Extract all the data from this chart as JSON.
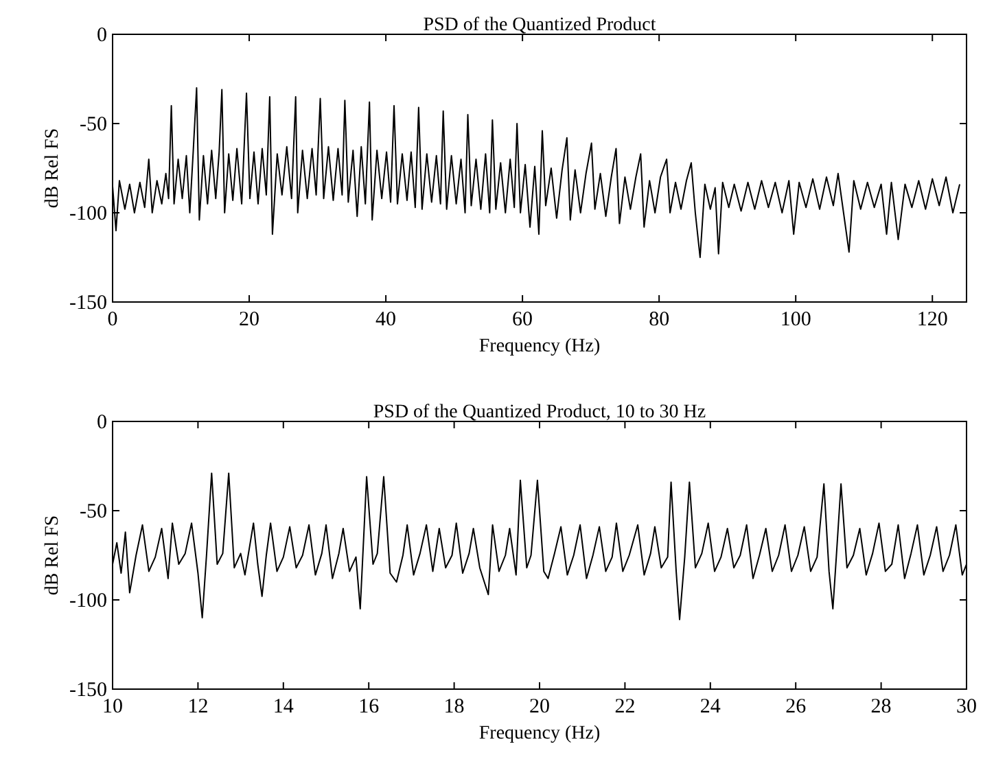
{
  "chart_data": [
    {
      "type": "line",
      "title": "PSD of the Quantized Product",
      "xlabel": "Frequency (Hz)",
      "ylabel": "dB Rel FS",
      "xlim": [
        0,
        125
      ],
      "xticks": [
        0,
        20,
        40,
        60,
        80,
        100,
        120
      ],
      "ylim": [
        -150,
        0
      ],
      "yticks": [
        0,
        -50,
        -100,
        -150
      ],
      "grid": false,
      "line_style": "solid",
      "marker": "none",
      "series": [
        {
          "color": "#000000",
          "x": [
            0,
            0.5,
            1,
            1.8,
            2.5,
            3.2,
            4,
            4.7,
            5.3,
            5.8,
            6.5,
            7.2,
            7.8,
            8.2,
            8.6,
            9,
            9.6,
            10.2,
            10.8,
            11.3,
            11.8,
            12.3,
            12.7,
            13.3,
            13.9,
            14.5,
            15.1,
            15.6,
            16,
            16.4,
            17,
            17.6,
            18.2,
            18.9,
            19.6,
            20.1,
            20.7,
            21.3,
            21.9,
            22.5,
            23,
            23.4,
            24.1,
            24.8,
            25.5,
            26.2,
            26.8,
            27.1,
            27.8,
            28.5,
            29.2,
            29.8,
            30.4,
            30.9,
            31.6,
            32.3,
            33,
            33.6,
            34,
            34.5,
            35.2,
            35.8,
            36.4,
            37,
            37.6,
            38,
            38.7,
            39.4,
            40.1,
            40.7,
            41.2,
            41.7,
            42.4,
            43.1,
            43.7,
            44.3,
            44.8,
            45.3,
            46,
            46.7,
            47.4,
            48,
            48.4,
            48.9,
            49.6,
            50.3,
            51,
            51.6,
            52,
            52.5,
            53.2,
            53.9,
            54.6,
            55.2,
            55.6,
            56.1,
            56.8,
            57.5,
            58.2,
            58.8,
            59.2,
            59.7,
            60.4,
            61.1,
            61.8,
            62.4,
            62.9,
            63.4,
            64.2,
            65,
            65.8,
            66.5,
            67,
            67.7,
            68.5,
            69.3,
            70.1,
            70.6,
            71.4,
            72.2,
            73,
            73.7,
            74.2,
            75,
            75.8,
            76.6,
            77.3,
            77.8,
            78.6,
            79.4,
            80.2,
            81.1,
            81.6,
            82.4,
            83.2,
            84,
            84.7,
            85.3,
            86,
            86.7,
            87.5,
            88.2,
            88.7,
            89.3,
            90.2,
            91,
            92,
            93,
            94,
            95,
            96,
            97,
            98,
            99,
            99.7,
            100.5,
            101.5,
            102.5,
            103.5,
            104.5,
            105.5,
            106.2,
            107,
            107.8,
            108.5,
            109.5,
            110.5,
            111.5,
            112.5,
            113.3,
            114,
            115,
            116,
            117,
            118,
            119,
            120,
            121,
            122,
            123,
            124
          ],
          "values": [
            -85,
            -110,
            -82,
            -98,
            -84,
            -100,
            -83,
            -97,
            -70,
            -100,
            -82,
            -95,
            -78,
            -92,
            -40,
            -95,
            -70,
            -92,
            -68,
            -100,
            -66,
            -30,
            -104,
            -68,
            -95,
            -65,
            -92,
            -66,
            -31,
            -100,
            -67,
            -93,
            -64,
            -95,
            -33,
            -92,
            -66,
            -95,
            -64,
            -90,
            -35,
            -112,
            -67,
            -90,
            -63,
            -92,
            -35,
            -100,
            -65,
            -92,
            -64,
            -90,
            -36,
            -92,
            -63,
            -93,
            -64,
            -90,
            -37,
            -94,
            -65,
            -102,
            -63,
            -95,
            -38,
            -104,
            -65,
            -92,
            -66,
            -94,
            -40,
            -95,
            -67,
            -93,
            -66,
            -97,
            -41,
            -98,
            -67,
            -94,
            -68,
            -95,
            -43,
            -98,
            -68,
            -95,
            -70,
            -100,
            -45,
            -96,
            -70,
            -98,
            -67,
            -100,
            -48,
            -98,
            -72,
            -100,
            -70,
            -97,
            -50,
            -100,
            -73,
            -108,
            -74,
            -112,
            -54,
            -96,
            -75,
            -103,
            -76,
            -58,
            -104,
            -76,
            -100,
            -78,
            -61,
            -98,
            -78,
            -102,
            -80,
            -64,
            -106,
            -80,
            -98,
            -80,
            -67,
            -108,
            -82,
            -100,
            -80,
            -70,
            -100,
            -83,
            -98,
            -82,
            -72,
            -100,
            -125,
            -84,
            -98,
            -86,
            -123,
            -83,
            -97,
            -84,
            -99,
            -83,
            -98,
            -82,
            -97,
            -83,
            -100,
            -82,
            -112,
            -83,
            -97,
            -81,
            -98,
            -80,
            -96,
            -78,
            -100,
            -122,
            -82,
            -98,
            -83,
            -97,
            -84,
            -112,
            -83,
            -115,
            -84,
            -97,
            -82,
            -98,
            -81,
            -96,
            -80,
            -100,
            -84
          ]
        }
      ]
    },
    {
      "type": "line",
      "title": "PSD of the Quantized Product, 10 to 30 Hz",
      "xlabel": "Frequency (Hz)",
      "ylabel": "dB Rel FS",
      "xlim": [
        10,
        30
      ],
      "xticks": [
        10,
        12,
        14,
        16,
        18,
        20,
        22,
        24,
        26,
        28,
        30
      ],
      "ylim": [
        -150,
        0
      ],
      "yticks": [
        0,
        -50,
        -100,
        -150
      ],
      "grid": false,
      "line_style": "solid",
      "marker": "none",
      "series": [
        {
          "color": "#000000",
          "x": [
            10,
            10.1,
            10.2,
            10.3,
            10.4,
            10.55,
            10.7,
            10.85,
            11,
            11.15,
            11.3,
            11.4,
            11.55,
            11.7,
            11.85,
            12,
            12.1,
            12.2,
            12.32,
            12.45,
            12.58,
            12.72,
            12.85,
            13,
            13.1,
            13.3,
            13.4,
            13.5,
            13.6,
            13.7,
            13.85,
            14,
            14.15,
            14.3,
            14.45,
            14.6,
            14.75,
            14.9,
            15,
            15.15,
            15.3,
            15.4,
            15.55,
            15.7,
            15.8,
            15.95,
            16.1,
            16.2,
            16.35,
            16.5,
            16.65,
            16.8,
            16.9,
            17.05,
            17.2,
            17.35,
            17.5,
            17.65,
            17.8,
            17.95,
            18.05,
            18.2,
            18.35,
            18.45,
            18.6,
            18.8,
            18.9,
            19.05,
            19.2,
            19.3,
            19.45,
            19.55,
            19.7,
            19.8,
            19.95,
            20.1,
            20.2,
            20.35,
            20.5,
            20.65,
            20.8,
            20.95,
            21.1,
            21.25,
            21.4,
            21.55,
            21.7,
            21.8,
            21.95,
            22.1,
            22.3,
            22.45,
            22.6,
            22.7,
            22.85,
            23,
            23.08,
            23.2,
            23.28,
            23.4,
            23.51,
            23.65,
            23.8,
            23.95,
            24.1,
            24.25,
            24.4,
            24.55,
            24.7,
            24.85,
            25,
            25.15,
            25.3,
            25.45,
            25.6,
            25.75,
            25.9,
            26.05,
            26.2,
            26.35,
            26.5,
            26.66,
            26.78,
            26.87,
            26.95,
            27.06,
            27.2,
            27.35,
            27.5,
            27.65,
            27.8,
            27.95,
            28.1,
            28.25,
            28.4,
            28.55,
            28.7,
            28.85,
            29,
            29.15,
            29.3,
            29.45,
            29.6,
            29.75,
            29.9,
            30
          ],
          "values": [
            -80,
            -68,
            -85,
            -62,
            -96,
            -75,
            -58,
            -84,
            -76,
            -60,
            -88,
            -57,
            -80,
            -74,
            -57,
            -85,
            -110,
            -75,
            -29,
            -80,
            -74,
            -29,
            -82,
            -74,
            -86,
            -57,
            -80,
            -98,
            -75,
            -57,
            -84,
            -76,
            -59,
            -82,
            -75,
            -58,
            -86,
            -74,
            -58,
            -88,
            -74,
            -60,
            -84,
            -76,
            -105,
            -31,
            -80,
            -74,
            -31,
            -85,
            -90,
            -75,
            -58,
            -86,
            -74,
            -58,
            -84,
            -60,
            -82,
            -75,
            -57,
            -85,
            -74,
            -60,
            -82,
            -97,
            -58,
            -84,
            -75,
            -60,
            -86,
            -33,
            -82,
            -75,
            -33,
            -84,
            -88,
            -74,
            -59,
            -86,
            -75,
            -58,
            -88,
            -75,
            -59,
            -84,
            -76,
            -57,
            -84,
            -75,
            -58,
            -86,
            -74,
            -59,
            -82,
            -76,
            -34,
            -84,
            -111,
            -76,
            -34,
            -82,
            -74,
            -57,
            -84,
            -76,
            -60,
            -82,
            -75,
            -58,
            -88,
            -75,
            -60,
            -84,
            -75,
            -58,
            -84,
            -75,
            -59,
            -84,
            -76,
            -35,
            -84,
            -105,
            -76,
            -35,
            -82,
            -75,
            -60,
            -86,
            -74,
            -57,
            -84,
            -80,
            -58,
            -88,
            -74,
            -58,
            -86,
            -75,
            -59,
            -84,
            -75,
            -58,
            -86,
            -80
          ]
        }
      ]
    }
  ]
}
